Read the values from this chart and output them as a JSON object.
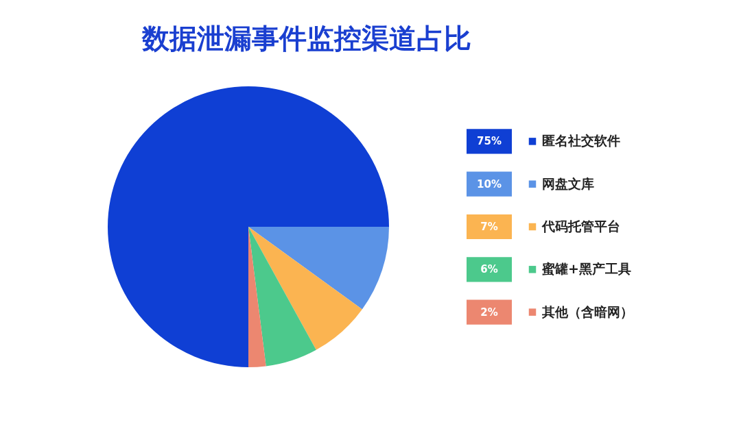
{
  "chart_data": {
    "type": "pie",
    "title": "数据泄漏事件监控渠道占比",
    "categories": [
      "匿名社交软件",
      "网盘文库",
      "代码托管平台",
      "蜜罐+黑产工具",
      "其他（含暗网）"
    ],
    "values": [
      75,
      10,
      7,
      6,
      2
    ],
    "value_labels": [
      "75%",
      "10%",
      "7%",
      "6%",
      "2%"
    ],
    "colors": [
      "#0f3fd4",
      "#5b93e6",
      "#fbb451",
      "#4cc98c",
      "#ec8770"
    ],
    "legend": "right"
  }
}
